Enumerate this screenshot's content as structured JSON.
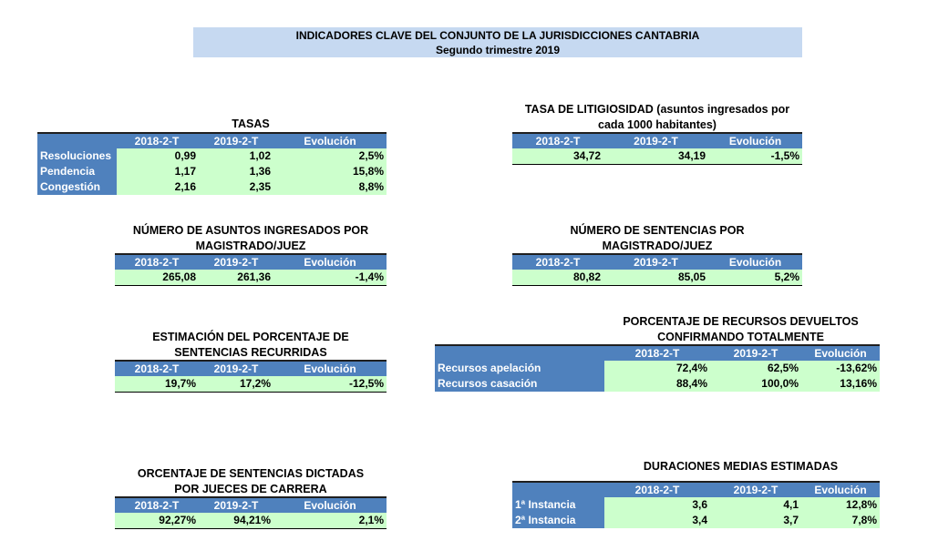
{
  "header": {
    "title": "INDICADORES CLAVE DEL CONJUNTO DE LA JURISDICCIONES CANTABRIA",
    "subtitle": "Segundo trimestre 2019"
  },
  "columns": {
    "c1": "2018-2-T",
    "c2": "2019-2-T",
    "c3": "Evolución"
  },
  "tasas": {
    "title": "TASAS",
    "rows": [
      {
        "label": "Resoluciones",
        "v1": "0,99",
        "v2": "1,02",
        "v3": "2,5%"
      },
      {
        "label": "Pendencia",
        "v1": "1,17",
        "v2": "1,36",
        "v3": "15,8%"
      },
      {
        "label": "Congestión",
        "v1": "2,16",
        "v2": "2,35",
        "v3": "8,8%"
      }
    ]
  },
  "litigiosidad": {
    "title_l1": "TASA DE LITIGIOSIDAD (asuntos ingresados por",
    "title_l2": "cada 1000 habitantes)",
    "v1": "34,72",
    "v2": "34,19",
    "v3": "-1,5%"
  },
  "ingresados": {
    "title_l1": "NÚMERO DE ASUNTOS INGRESADOS POR",
    "title_l2": "MAGISTRADO/JUEZ",
    "v1": "265,08",
    "v2": "261,36",
    "v3": "-1,4%"
  },
  "sentencias": {
    "title_l1": "NÚMERO DE SENTENCIAS POR",
    "title_l2": "MAGISTRADO/JUEZ",
    "v1": "80,82",
    "v2": "85,05",
    "v3": "5,2%"
  },
  "recurridas": {
    "title_l1": "ESTIMACIÓN DEL PORCENTAJE DE",
    "title_l2": "SENTENCIAS RECURRIDAS",
    "v1": "19,7%",
    "v2": "17,2%",
    "v3": "-12,5%"
  },
  "recursos": {
    "title_l1": "PORCENTAJE DE RECURSOS DEVUELTOS",
    "title_l2": "CONFIRMANDO TOTALMENTE",
    "rows": [
      {
        "label": "Recursos apelación",
        "v1": "72,4%",
        "v2": "62,5%",
        "v3": "-13,62%"
      },
      {
        "label": "Recursos casación",
        "v1": "88,4%",
        "v2": "100,0%",
        "v3": "13,16%"
      }
    ]
  },
  "carrera": {
    "title_l1": "ORCENTAJE DE SENTENCIAS DICTADAS",
    "title_l2": "POR JUECES DE CARRERA",
    "v1": "92,27%",
    "v2": "94,21%",
    "v3": "2,1%"
  },
  "duraciones": {
    "title": "DURACIONES MEDIAS ESTIMADAS",
    "rows": [
      {
        "label": "1ª Instancia",
        "v1": "3,6",
        "v2": "4,1",
        "v3": "12,8%"
      },
      {
        "label": "2ª Instancia",
        "v1": "3,4",
        "v2": "3,7",
        "v3": "7,8%"
      }
    ]
  }
}
